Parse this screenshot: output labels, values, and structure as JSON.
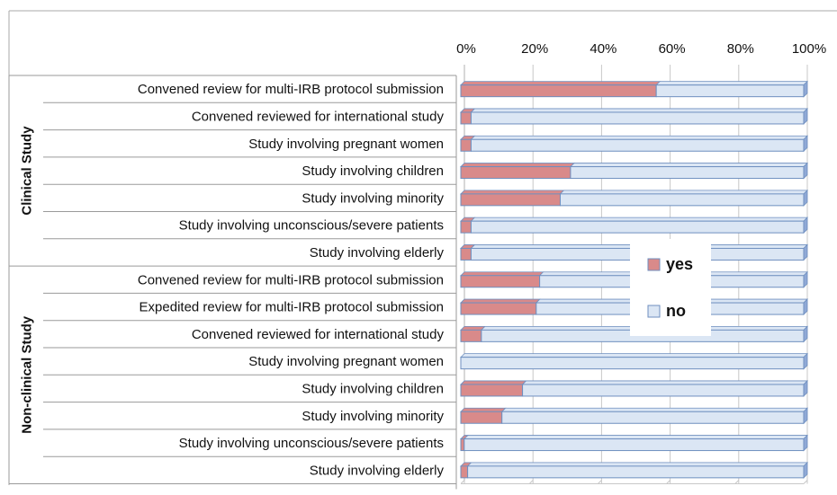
{
  "chart_data": {
    "type": "bar",
    "orientation": "horizontal",
    "stacked": "percent",
    "x_ticks": [
      "0%",
      "20%",
      "40%",
      "60%",
      "80%",
      "100%"
    ],
    "xlim": [
      0,
      100
    ],
    "groups": [
      {
        "label": "Clinical Study",
        "categories": [
          "Convened review for multi-IRB protocol submission",
          "Convened reviewed for international study",
          "Study involving pregnant women",
          "Study involving children",
          "Study involving minority",
          "Study involving unconscious/severe patients",
          "Study involving elderly"
        ]
      },
      {
        "label": "Non-clinical Study",
        "categories": [
          "Convened review for multi-IRB protocol submission",
          "Expedited review for multi-IRB protocol submission",
          "Convened reviewed for international study",
          "Study involving pregnant women",
          "Study involving children",
          "Study involving minority",
          "Study involving unconscious/severe patients",
          "Study involving elderly"
        ]
      }
    ],
    "series": [
      {
        "name": "yes",
        "color": "#d98a8a",
        "values": [
          57,
          3,
          3,
          32,
          29,
          3,
          3,
          23,
          22,
          6,
          0,
          18,
          12,
          1,
          2
        ]
      },
      {
        "name": "no",
        "color": "#dbe6f4",
        "values": [
          43,
          97,
          97,
          68,
          71,
          97,
          97,
          77,
          78,
          94,
          100,
          82,
          88,
          99,
          98
        ]
      }
    ],
    "legend_position": "center-right",
    "grid": true
  }
}
